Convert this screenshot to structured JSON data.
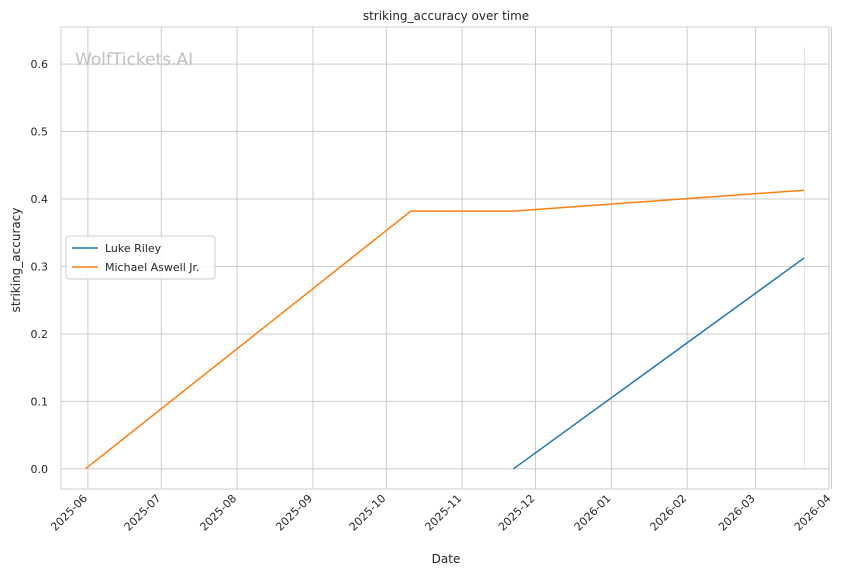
{
  "chart_data": {
    "type": "line",
    "title": "striking_accuracy over time",
    "xlabel": "Date",
    "ylabel": "striking_accuracy",
    "watermark": "WolfTickets.AI",
    "x_ticks": [
      "2025-06",
      "2025-07",
      "2025-08",
      "2025-09",
      "2025-10",
      "2025-11",
      "2025-12",
      "2026-01",
      "2026-02",
      "2026-03",
      "2026-04"
    ],
    "xlim": [
      "2025-05-21",
      "2026-03-31"
    ],
    "y_ticks": [
      0.0,
      0.1,
      0.2,
      0.3,
      0.4,
      0.5,
      0.6
    ],
    "ylim": [
      -0.03,
      0.655
    ],
    "grid": true,
    "legend_position": "center-left",
    "series": [
      {
        "name": "Luke Riley",
        "color": "#1f77b4",
        "points": [
          {
            "x": "2025-11-22",
            "y": 0.0
          },
          {
            "x": "2026-03-21",
            "y": 0.313
          }
        ]
      },
      {
        "name": "Michael Aswell Jr.",
        "color": "#ff7f0e",
        "points": [
          {
            "x": "2025-05-31",
            "y": 0.0
          },
          {
            "x": "2025-10-11",
            "y": 0.382
          },
          {
            "x": "2025-11-22",
            "y": 0.382
          },
          {
            "x": "2026-03-21",
            "y": 0.413
          }
        ]
      }
    ]
  }
}
